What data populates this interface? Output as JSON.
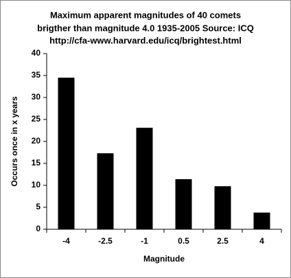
{
  "chart_data": {
    "type": "bar",
    "title": [
      "Maximum apparent magnitudes of 40 comets",
      "brigther than magnitude 4.0 1935-2005 Source: ICQ",
      "http://cfa-www.harvard.edu/icq/brightest.html"
    ],
    "x_label": "Magnitude",
    "y_label": "Occurs once in x years",
    "categories": [
      "-4",
      "-2.5",
      "-1",
      "0.5",
      "2.5",
      "4"
    ],
    "values": [
      34.5,
      17.3,
      23.1,
      11.4,
      9.8,
      3.8
    ],
    "color": "#000000",
    "ylim": [
      0,
      40
    ],
    "yticks": [
      0,
      5,
      10,
      15,
      20,
      25,
      30,
      35,
      40
    ],
    "grid": false
  }
}
